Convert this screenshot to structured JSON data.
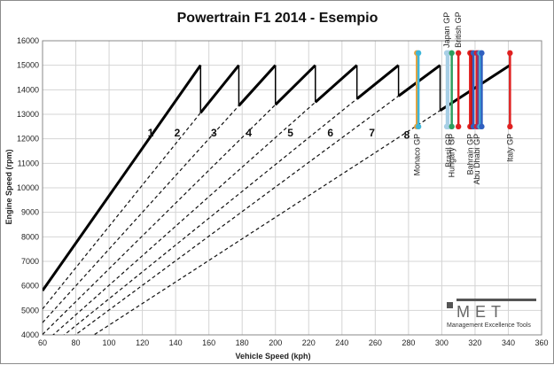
{
  "chart_data": {
    "type": "line",
    "title": "Powertrain F1 2014 - Esempio",
    "xlabel": "Vehicle Speed (kph)",
    "ylabel": "Engine Speed (rpm)",
    "xlim": [
      60,
      360
    ],
    "ylim": [
      4000,
      16000
    ],
    "xticks": [
      60,
      80,
      100,
      120,
      140,
      160,
      180,
      200,
      220,
      240,
      260,
      280,
      300,
      320,
      340,
      360
    ],
    "yticks": [
      4000,
      5000,
      6000,
      7000,
      8000,
      9000,
      10000,
      11000,
      12000,
      13000,
      14000,
      15000,
      16000
    ],
    "grid": true,
    "gears": [
      {
        "label": "1",
        "vmax": 155,
        "label_x": 125,
        "label_y": 12100
      },
      {
        "label": "2",
        "vmax": 178,
        "label_x": 141,
        "label_y": 12100
      },
      {
        "label": "3",
        "vmax": 200,
        "label_x": 163,
        "label_y": 12100
      },
      {
        "label": "4",
        "vmax": 224,
        "label_x": 184,
        "label_y": 12100
      },
      {
        "label": "5",
        "vmax": 249,
        "label_x": 209,
        "label_y": 12100
      },
      {
        "label": "6",
        "vmax": 274,
        "label_x": 233,
        "label_y": 12100
      },
      {
        "label": "7",
        "vmax": 299,
        "label_x": 258,
        "label_y": 12100
      },
      {
        "label": "8",
        "vmax": 341,
        "label_x": 279,
        "label_y": 12000
      }
    ],
    "shift_rpm": 15000,
    "tracks": [
      {
        "name": "Monaco GP",
        "x": 285,
        "color": "#e8a33c",
        "label_pos": "below"
      },
      {
        "name": "Monaco GP",
        "x": 286,
        "color": "#3fb6d8",
        "label_pos": "none"
      },
      {
        "name": "Japan GP",
        "x": 303,
        "color": "#a8cfe6",
        "label_pos": "above"
      },
      {
        "name": "Brasil GP",
        "x": 304,
        "color": "#a8cfe6",
        "label_pos": "below"
      },
      {
        "name": "Hungary GP",
        "x": 306,
        "color": "#2e9e5e",
        "label_pos": "below"
      },
      {
        "name": "British GP",
        "x": 310,
        "color": "#e02020",
        "label_pos": "above"
      },
      {
        "name": "Bahrain GP",
        "x": 317,
        "color": "#e02020",
        "label_pos": "below"
      },
      {
        "name": "",
        "x": 318,
        "color": "#c81515",
        "label_pos": "none"
      },
      {
        "name": "",
        "x": 319,
        "color": "#3060c0",
        "label_pos": "none"
      },
      {
        "name": "Abu Dhabi GP",
        "x": 321,
        "color": "#e02020",
        "label_pos": "below"
      },
      {
        "name": "",
        "x": 322,
        "color": "#7a3c8c",
        "label_pos": "none"
      },
      {
        "name": "",
        "x": 323,
        "color": "#3fb6d8",
        "label_pos": "none"
      },
      {
        "name": "",
        "x": 324,
        "color": "#3060c0",
        "label_pos": "none"
      },
      {
        "name": "Italy GP",
        "x": 341,
        "color": "#e02020",
        "label_pos": "below"
      }
    ],
    "track_rpm_range": [
      12500,
      15500
    ]
  },
  "logo": {
    "brand": "MET",
    "tagline": "Management Excellence Tools"
  }
}
